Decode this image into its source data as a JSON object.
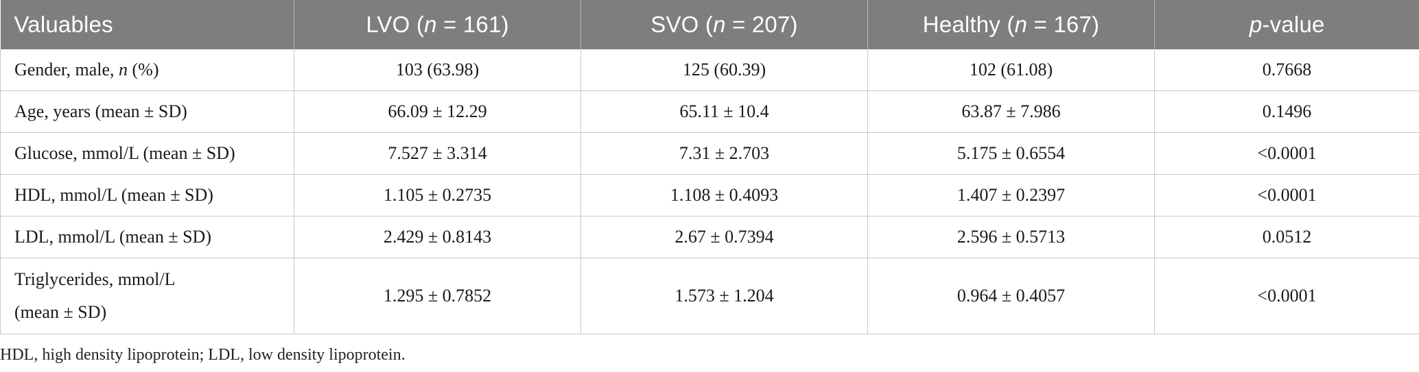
{
  "table": {
    "headers": [
      {
        "pre": "Valuables",
        "italic": "",
        "post": ""
      },
      {
        "pre": "LVO (",
        "italic": "n",
        "post": " = 161)"
      },
      {
        "pre": "SVO (",
        "italic": "n",
        "post": " = 207)"
      },
      {
        "pre": "Healthy (",
        "italic": "n",
        "post": " = 167)"
      },
      {
        "pre": "",
        "italic": "p",
        "post": "-value"
      }
    ],
    "rows": [
      {
        "label_pre": "Gender, male, ",
        "label_italic": "n",
        "label_post": " (%)",
        "label_line2": "",
        "lvo": "103 (63.98)",
        "svo": "125 (60.39)",
        "healthy": "102 (61.08)",
        "p": "0.7668"
      },
      {
        "label_pre": "Age, years (mean ± SD)",
        "label_italic": "",
        "label_post": "",
        "label_line2": "",
        "lvo": "66.09 ± 12.29",
        "svo": "65.11 ± 10.4",
        "healthy": "63.87 ± 7.986",
        "p": "0.1496"
      },
      {
        "label_pre": "Glucose, mmol/L (mean ± SD)",
        "label_italic": "",
        "label_post": "",
        "label_line2": "",
        "lvo": "7.527 ± 3.314",
        "svo": "7.31 ± 2.703",
        "healthy": "5.175 ± 0.6554",
        "p": "<0.0001"
      },
      {
        "label_pre": "HDL, mmol/L (mean ± SD)",
        "label_italic": "",
        "label_post": "",
        "label_line2": "",
        "lvo": "1.105 ± 0.2735",
        "svo": "1.108 ± 0.4093",
        "healthy": "1.407 ± 0.2397",
        "p": "<0.0001"
      },
      {
        "label_pre": "LDL, mmol/L (mean ± SD)",
        "label_italic": "",
        "label_post": "",
        "label_line2": "",
        "lvo": "2.429 ± 0.8143",
        "svo": "2.67 ± 0.7394",
        "healthy": "2.596 ± 0.5713",
        "p": "0.0512"
      },
      {
        "label_pre": "Triglycerides, mmol/L",
        "label_italic": "",
        "label_post": "",
        "label_line2": "(mean ± SD)",
        "lvo": "1.295 ± 0.7852",
        "svo": "1.573 ± 1.204",
        "healthy": "0.964 ± 0.4057",
        "p": "<0.0001"
      }
    ]
  },
  "footnote": "HDL, high density lipoprotein; LDL, low density lipoprotein."
}
